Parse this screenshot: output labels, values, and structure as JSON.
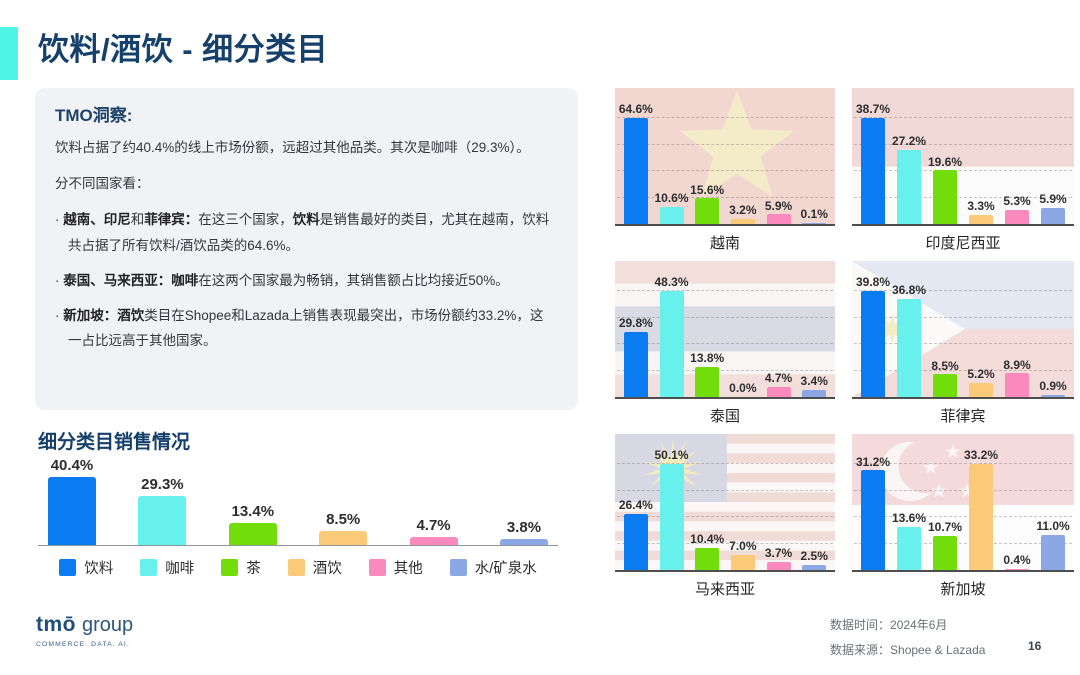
{
  "page": {
    "title": "饮料/酒饮 - 细分类目",
    "page_number": "16",
    "accent_color": "#4ef5e6",
    "title_color": "#15406b"
  },
  "insight": {
    "heading": "TMO洞察:",
    "intro": [
      {
        "t": "饮料占据了约40.4%的线上市场份额，远超过其他品类。其次是咖啡（29.3%）。"
      }
    ],
    "subhead": "分不同国家看：",
    "bullets": [
      [
        {
          "t": "· "
        },
        {
          "t": "越南、印尼",
          "b": 1
        },
        {
          "t": "和"
        },
        {
          "t": "菲律宾：",
          "b": 1
        },
        {
          "t": "在这三个国家，"
        },
        {
          "t": "饮料",
          "b": 1
        },
        {
          "t": "是销售最好的类目，尤其在越南，饮料共占据了所有饮料/酒饮品类的64.6%。"
        }
      ],
      [
        {
          "t": "· "
        },
        {
          "t": "泰国、马来西亚：咖啡",
          "b": 1
        },
        {
          "t": "在这两个国家最为畅销，其销售额占比均接近50%。"
        }
      ],
      [
        {
          "t": "· "
        },
        {
          "t": "新加坡：酒饮",
          "b": 1
        },
        {
          "t": "类目在Shopee和Lazada上销售表现最突出，市场份额约33.2%，这一占比远高于其他国家。"
        }
      ]
    ]
  },
  "categories": [
    "饮料",
    "咖啡",
    "茶",
    "酒饮",
    "其他",
    "水/矿泉水"
  ],
  "colors": [
    "#0b7bf2",
    "#68f1ec",
    "#72dd0b",
    "#fbca79",
    "#fa8abe",
    "#8ca8e4"
  ],
  "chart_data": [
    {
      "type": "bar",
      "id": "overall",
      "title": "细分类目销售情况",
      "categories": [
        "饮料",
        "咖啡",
        "茶",
        "酒饮",
        "其他",
        "水/矿泉水"
      ],
      "values": [
        40.4,
        29.3,
        13.4,
        8.5,
        4.7,
        3.8
      ],
      "unit": "%",
      "legend": [
        "饮料",
        "咖啡",
        "茶",
        "酒饮",
        "其他",
        "水/矿泉水"
      ],
      "legend_position": "bottom",
      "grid": false
    },
    {
      "type": "bar",
      "id": "vietnam",
      "title": "越南",
      "flag": "vietnam",
      "categories": [
        "饮料",
        "咖啡",
        "茶",
        "酒饮",
        "其他",
        "水/矿泉水"
      ],
      "values": [
        64.6,
        10.6,
        15.6,
        3.2,
        5.9,
        0.1
      ],
      "unit": "%",
      "grid": true
    },
    {
      "type": "bar",
      "id": "indonesia",
      "title": "印度尼西亚",
      "flag": "indonesia",
      "categories": [
        "饮料",
        "咖啡",
        "茶",
        "酒饮",
        "其他",
        "水/矿泉水"
      ],
      "values": [
        38.7,
        27.2,
        19.6,
        3.3,
        5.3,
        5.9
      ],
      "unit": "%",
      "grid": true
    },
    {
      "type": "bar",
      "id": "thailand",
      "title": "泰国",
      "flag": "thailand",
      "categories": [
        "饮料",
        "咖啡",
        "茶",
        "酒饮",
        "其他",
        "水/矿泉水"
      ],
      "values": [
        29.8,
        48.3,
        13.8,
        0.0,
        4.7,
        3.4
      ],
      "unit": "%",
      "grid": true
    },
    {
      "type": "bar",
      "id": "philippines",
      "title": "菲律宾",
      "flag": "philippines",
      "categories": [
        "饮料",
        "咖啡",
        "茶",
        "酒饮",
        "其他",
        "水/矿泉水"
      ],
      "values": [
        39.8,
        36.8,
        8.5,
        5.2,
        8.9,
        0.9
      ],
      "unit": "%",
      "grid": true
    },
    {
      "type": "bar",
      "id": "malaysia",
      "title": "马来西亚",
      "flag": "malaysia",
      "categories": [
        "饮料",
        "咖啡",
        "茶",
        "酒饮",
        "其他",
        "水/矿泉水"
      ],
      "values": [
        26.4,
        50.1,
        10.4,
        7.0,
        3.7,
        2.5
      ],
      "unit": "%",
      "grid": true
    },
    {
      "type": "bar",
      "id": "singapore",
      "title": "新加坡",
      "flag": "singapore",
      "categories": [
        "饮料",
        "咖啡",
        "茶",
        "酒饮",
        "其他",
        "水/矿泉水"
      ],
      "values": [
        31.2,
        13.6,
        10.7,
        33.2,
        0.4,
        11.0
      ],
      "unit": "%",
      "grid": true
    }
  ],
  "footer": {
    "logo_brand": "tmō",
    "logo_suffix": "group",
    "logo_tagline": "COMMERCE. DATA. AI.",
    "data_time_label": "数据时间：",
    "data_time_value": "2024年6月",
    "data_source_label": "数据来源：",
    "data_source_value": "Shopee & Lazada"
  }
}
